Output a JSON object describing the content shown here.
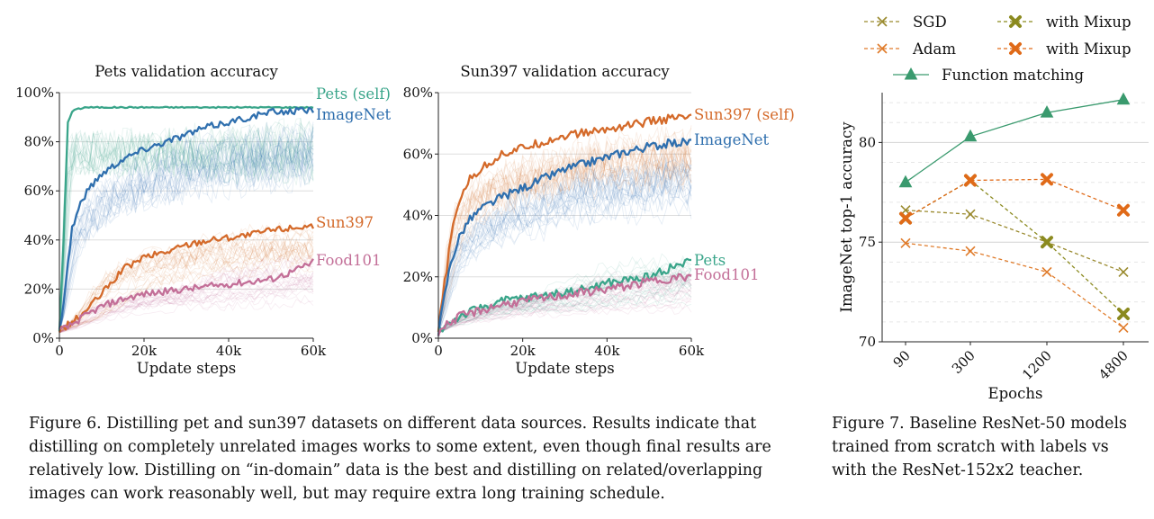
{
  "chart_data": [
    {
      "type": "line",
      "title": "Pets validation accuracy",
      "xlabel": "Update steps",
      "ylabel": "",
      "xlim": [
        0,
        60000
      ],
      "ylim": [
        0,
        100
      ],
      "xticks": [
        "0",
        "20k",
        "40k",
        "60k"
      ],
      "yticks": [
        "0%",
        "20%",
        "40%",
        "60%",
        "80%",
        "100%"
      ],
      "grid": true,
      "series": [
        {
          "name": "Pets (self)",
          "color": "#3aa58a",
          "x": [
            0,
            1000,
            2000,
            3000,
            4000,
            5000,
            6000,
            8000,
            10000,
            20000,
            30000,
            40000,
            50000,
            60000
          ],
          "y": [
            3,
            40,
            88,
            92,
            93.5,
            93.5,
            94,
            94,
            94,
            94,
            94,
            94,
            94,
            94
          ]
        },
        {
          "name": "ImageNet",
          "color": "#2f6fae",
          "x": [
            0,
            1000,
            2000,
            3000,
            5000,
            7000,
            10000,
            15000,
            20000,
            25000,
            30000,
            35000,
            40000,
            45000,
            50000,
            55000,
            60000
          ],
          "y": [
            3,
            15,
            30,
            45,
            55,
            61,
            67,
            73,
            77,
            80,
            83,
            86,
            88,
            90,
            92,
            92.5,
            93
          ]
        },
        {
          "name": "Sun397",
          "color": "#d46a2a",
          "x": [
            0,
            2500,
            5000,
            10000,
            15000,
            20000,
            25000,
            30000,
            35000,
            40000,
            45000,
            50000,
            55000,
            60000
          ],
          "y": [
            3,
            6,
            9,
            18,
            28,
            33,
            35,
            38,
            40,
            41,
            42,
            44,
            45,
            46
          ]
        },
        {
          "name": "Food101",
          "color": "#c36f98",
          "x": [
            0,
            2500,
            5000,
            10000,
            15000,
            20000,
            25000,
            30000,
            35000,
            40000,
            45000,
            50000,
            55000,
            60000
          ],
          "y": [
            3,
            5,
            8,
            13,
            16,
            18,
            19,
            20,
            21,
            22,
            23,
            24,
            27,
            31
          ]
        }
      ]
    },
    {
      "type": "line",
      "title": "Sun397 validation accuracy",
      "xlabel": "Update steps",
      "ylabel": "",
      "xlim": [
        0,
        60000
      ],
      "ylim": [
        0,
        80
      ],
      "xticks": [
        "0",
        "20k",
        "40k",
        "60k"
      ],
      "yticks": [
        "0%",
        "20%",
        "40%",
        "60%",
        "80%"
      ],
      "grid": true,
      "series": [
        {
          "name": "Sun397 (self)",
          "color": "#d46a2a",
          "x": [
            0,
            1000,
            2000,
            3000,
            5000,
            7000,
            10000,
            15000,
            20000,
            25000,
            30000,
            35000,
            40000,
            45000,
            50000,
            55000,
            60000
          ],
          "y": [
            2,
            13,
            23,
            33,
            45,
            51,
            55,
            60,
            62,
            64,
            66,
            67,
            68,
            69.5,
            70.5,
            71.5,
            72
          ]
        },
        {
          "name": "ImageNet",
          "color": "#2f6fae",
          "x": [
            0,
            1000,
            2000,
            3000,
            5000,
            7000,
            10000,
            15000,
            20000,
            25000,
            30000,
            35000,
            40000,
            45000,
            50000,
            55000,
            60000
          ],
          "y": [
            2,
            10,
            18,
            25,
            33,
            38,
            42,
            46,
            49,
            52,
            55,
            57,
            59,
            61,
            62.5,
            63.5,
            64
          ]
        },
        {
          "name": "Pets",
          "color": "#3aa58a",
          "x": [
            0,
            2500,
            5000,
            10000,
            15000,
            20000,
            25000,
            30000,
            35000,
            40000,
            45000,
            50000,
            55000,
            60000
          ],
          "y": [
            2,
            5,
            7,
            10,
            12,
            13,
            14,
            15,
            16,
            18,
            19,
            20,
            23,
            25
          ]
        },
        {
          "name": "Food101",
          "color": "#c36f98",
          "x": [
            0,
            2500,
            5000,
            10000,
            15000,
            20000,
            25000,
            30000,
            35000,
            40000,
            45000,
            50000,
            55000,
            60000
          ],
          "y": [
            2,
            5,
            7,
            9,
            11,
            12,
            13,
            14,
            15,
            16,
            17,
            18.5,
            19.5,
            20
          ]
        }
      ]
    },
    {
      "type": "line",
      "title": "",
      "xlabel": "Epochs",
      "ylabel": "ImageNet top-1 accuracy",
      "categories": [
        "90",
        "300",
        "1200",
        "4800"
      ],
      "ylim": [
        70,
        82.5
      ],
      "yticks": [
        "70",
        "75",
        "80"
      ],
      "grid": true,
      "legend_position": "top",
      "series": [
        {
          "name": "SGD",
          "color": "#9a8a2e",
          "marker": "x",
          "dash": true,
          "values": [
            76.6,
            76.4,
            75.0,
            73.5
          ]
        },
        {
          "name": "with Mixup",
          "color": "#8b8a1f",
          "marker": "X",
          "dash": true,
          "values": [
            76.2,
            78.1,
            75.0,
            71.4
          ]
        },
        {
          "name": "Adam",
          "color": "#e07b2a",
          "marker": "x",
          "dash": true,
          "values": [
            74.95,
            74.55,
            73.5,
            70.7
          ]
        },
        {
          "name": "with Mixup",
          "color": "#e06a18",
          "marker": "X",
          "dash": true,
          "values": [
            76.2,
            78.1,
            78.15,
            76.6
          ]
        },
        {
          "name": "Function matching",
          "color": "#3a9a6e",
          "marker": "^",
          "dash": false,
          "values": [
            78.0,
            80.3,
            81.5,
            82.15
          ]
        }
      ]
    }
  ],
  "captions": {
    "fig6": "Figure 6. Distilling pet and sun397 datasets on different data sources. Results indicate that distilling on completely unrelated images works to some extent, even though final results are relatively low. Distilling on “in-domain” data is the best and distilling on related/overlapping images can work reasonably well, but may require extra long training schedule.",
    "fig7": "Figure 7. Baseline ResNet-50 models trained from scratch with labels vs with the ResNet-152x2 teacher."
  }
}
